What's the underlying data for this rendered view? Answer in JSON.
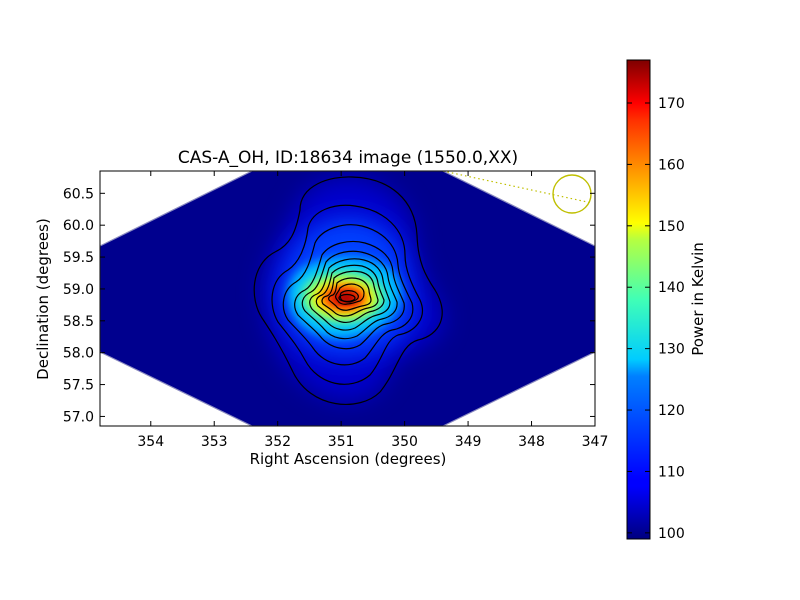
{
  "chart_data": {
    "type": "heatmap",
    "title": "CAS-A_OH, ID:18634 image (1550.0,XX)",
    "xlabel": "Right Ascension (degrees)",
    "ylabel": "Declination (degrees)",
    "x_ticks": [
      "354",
      "353",
      "352",
      "351",
      "350",
      "349",
      "348",
      "347"
    ],
    "x_tick_values": [
      354,
      353,
      352,
      351,
      350,
      349,
      348,
      347
    ],
    "xlim": [
      354.8,
      347.0
    ],
    "y_ticks": [
      "57.0",
      "57.5",
      "58.0",
      "58.5",
      "59.0",
      "59.5",
      "60.0",
      "60.5"
    ],
    "y_tick_values": [
      57.0,
      57.5,
      58.0,
      58.5,
      59.0,
      59.5,
      60.0,
      60.5
    ],
    "ylim": [
      56.85,
      60.85
    ],
    "grid": false,
    "colorbar": {
      "label": "Power in Kelvin",
      "range": [
        99,
        177
      ],
      "ticks": [
        "100",
        "110",
        "120",
        "130",
        "140",
        "150",
        "160",
        "170"
      ],
      "tick_values": [
        100,
        110,
        120,
        130,
        140,
        150,
        160,
        170
      ],
      "colormap": "jet"
    },
    "peak": {
      "ra": 350.9,
      "dec": 58.85,
      "value": 176
    },
    "background_value": 100,
    "beam_marker": {
      "ra": 347.38,
      "dec": 60.47,
      "color": "#bfbf00"
    },
    "contour_count": 12
  }
}
